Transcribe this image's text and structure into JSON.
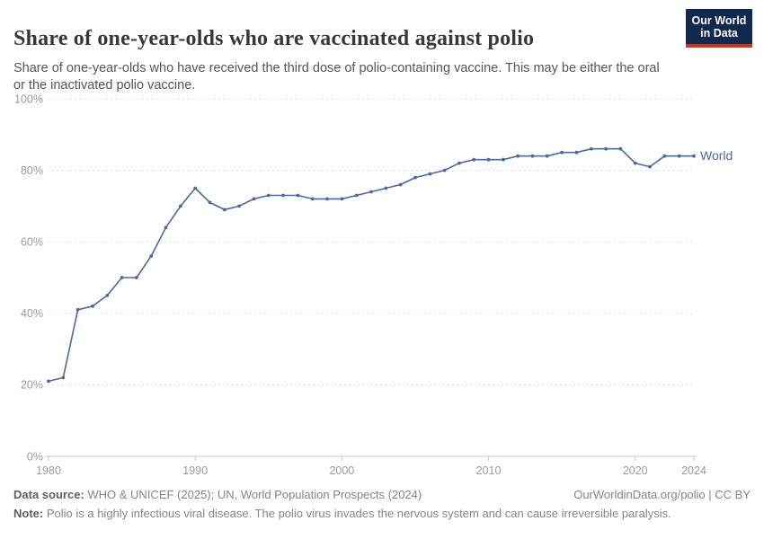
{
  "header": {
    "title": "Share of one-year-olds who are vaccinated against polio",
    "subtitle": "Share of one-year-olds who have received the third dose of polio-containing vaccine. This may be either the oral or the inactivated polio vaccine.",
    "logo": {
      "line1": "Our World",
      "line2": "in Data",
      "bg_color": "#12294f",
      "stripe_color": "#cc3527"
    }
  },
  "chart_data": {
    "type": "line",
    "title": "Share of one-year-olds who are vaccinated against polio",
    "xlabel": "",
    "ylabel": "",
    "xlim": [
      1980,
      2024
    ],
    "ylim": [
      0,
      100
    ],
    "grid": "dashed horizontal gridlines, solid baseline at 0%",
    "legend_position": "end-of-line label",
    "x_axis": {
      "ticks": [
        {
          "value": 1980,
          "label": "1980"
        },
        {
          "value": 1990,
          "label": "1990"
        },
        {
          "value": 2000,
          "label": "2000"
        },
        {
          "value": 2010,
          "label": "2010"
        },
        {
          "value": 2020,
          "label": "2020"
        },
        {
          "value": 2024,
          "label": "2024"
        }
      ]
    },
    "y_axis": {
      "ticks": [
        {
          "value": 0,
          "label": "0%"
        },
        {
          "value": 20,
          "label": "20%"
        },
        {
          "value": 40,
          "label": "40%"
        },
        {
          "value": 60,
          "label": "60%"
        },
        {
          "value": 80,
          "label": "80%"
        },
        {
          "value": 100,
          "label": "100%"
        }
      ]
    },
    "series": [
      {
        "name": "World",
        "color": "#4c6a9c",
        "x": [
          1980,
          1981,
          1982,
          1983,
          1984,
          1985,
          1986,
          1987,
          1988,
          1989,
          1990,
          1991,
          1992,
          1993,
          1994,
          1995,
          1996,
          1997,
          1998,
          1999,
          2000,
          2001,
          2002,
          2003,
          2004,
          2005,
          2006,
          2007,
          2008,
          2009,
          2010,
          2011,
          2012,
          2013,
          2014,
          2015,
          2016,
          2017,
          2018,
          2019,
          2020,
          2021,
          2022,
          2023,
          2024
        ],
        "values": [
          21,
          22,
          41,
          42,
          45,
          50,
          50,
          56,
          64,
          70,
          75,
          71,
          69,
          70,
          72,
          73,
          73,
          73,
          72,
          72,
          72,
          73,
          74,
          75,
          76,
          78,
          79,
          80,
          82,
          83,
          83,
          83,
          84,
          84,
          84,
          85,
          85,
          86,
          86,
          86,
          82,
          81,
          84,
          84,
          84
        ]
      }
    ]
  },
  "footer": {
    "datasource_label": "Data source:",
    "datasource_text": "WHO & UNICEF (2025); UN, World Population Prospects (2024)",
    "permalink": "OurWorldinData.org/polio | CC BY",
    "note_label": "Note:",
    "note_text": "Polio is a highly infectious viral disease. The polio virus invades the nervous system and can cause irreversible paralysis."
  }
}
